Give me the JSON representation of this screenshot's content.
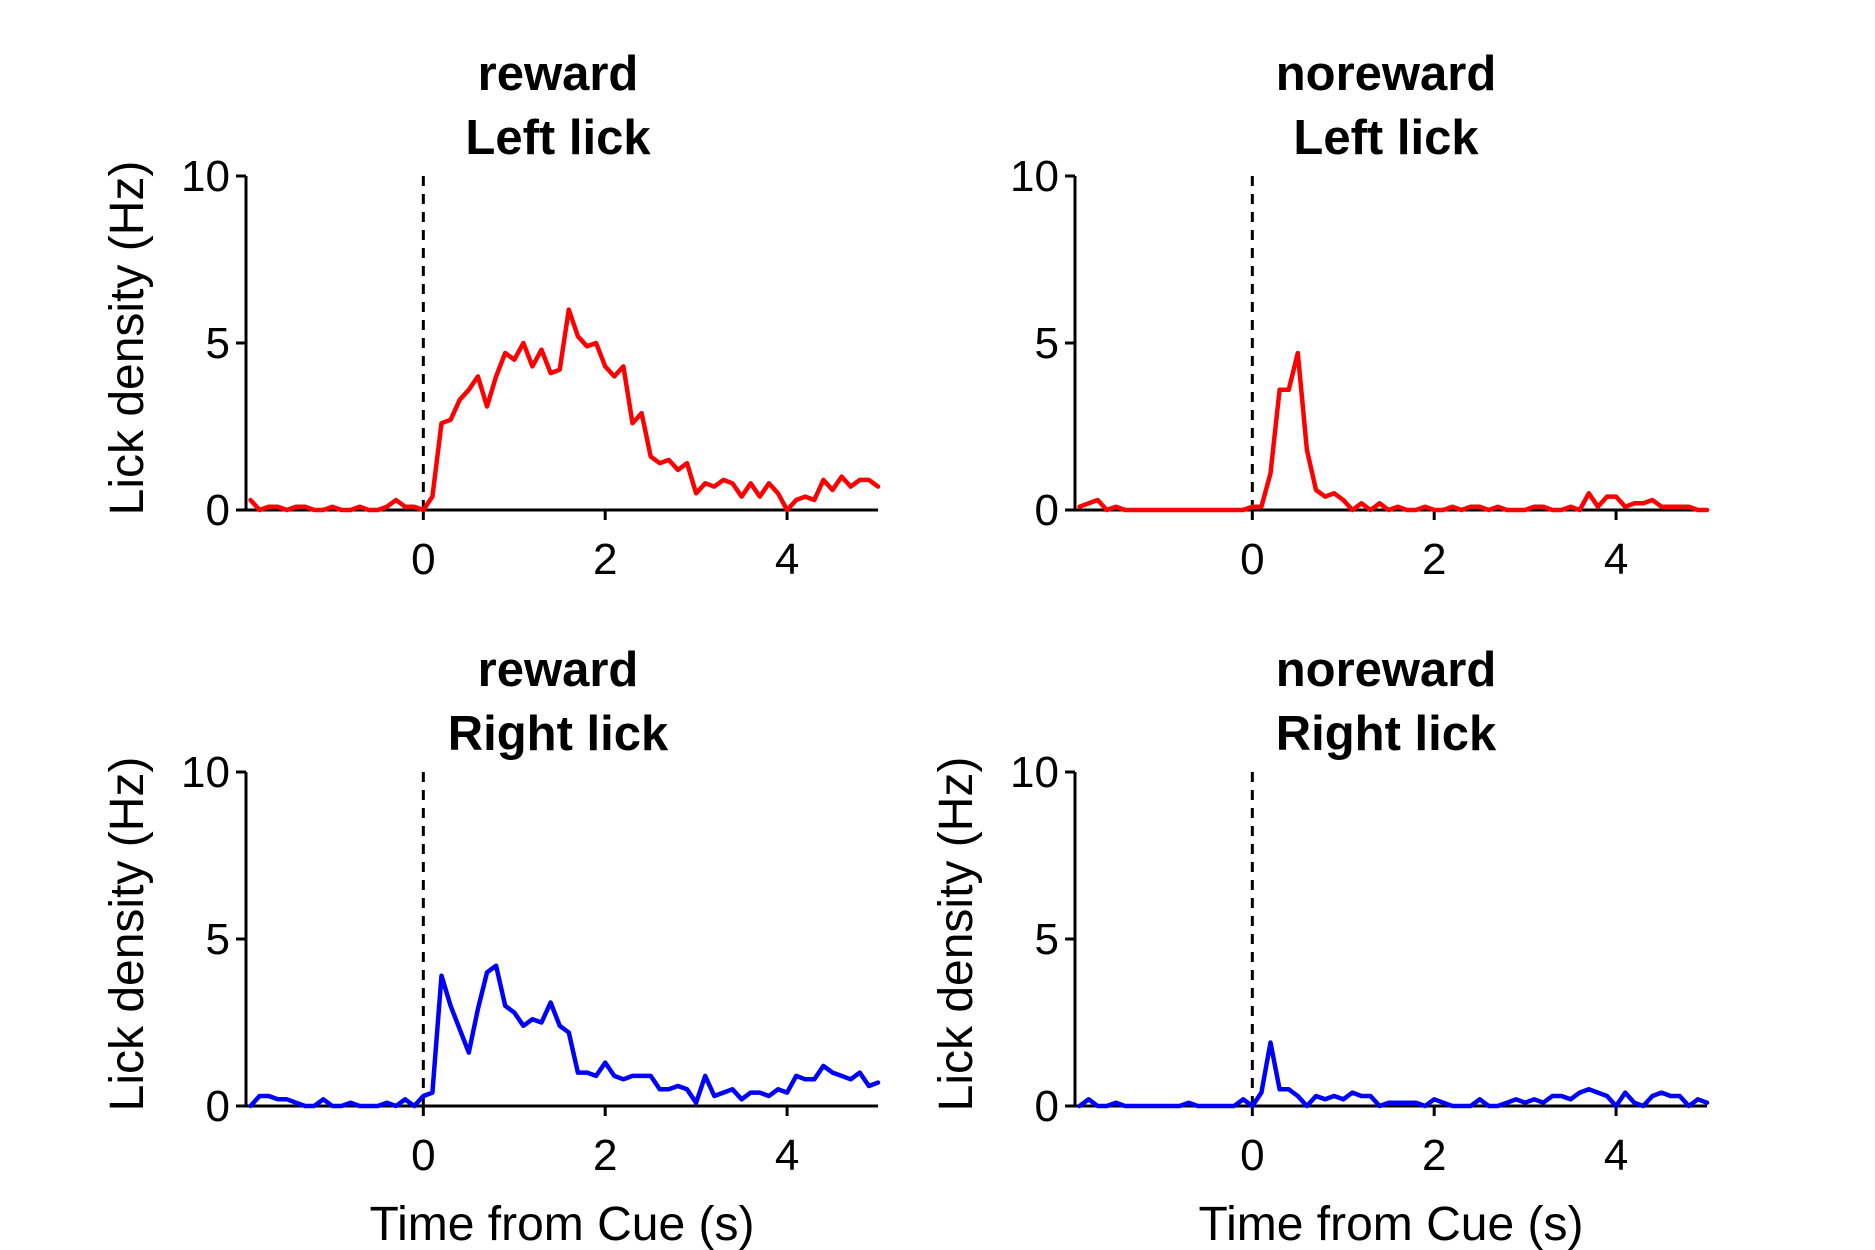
{
  "chart_data": [
    {
      "type": "line",
      "title": "reward",
      "subtitle": "Left lick",
      "xlabel": "",
      "ylabel": "Lick density (Hz)",
      "xlim": [
        -1.95,
        5.0
      ],
      "ylim": [
        0,
        10
      ],
      "xticks": [
        0,
        2,
        4
      ],
      "yticks": [
        0,
        5,
        10
      ],
      "xtick_labels": [
        "0",
        "2",
        "4"
      ],
      "ytick_labels": [
        "0",
        "5",
        "10"
      ],
      "cue_line_x": 0,
      "grid": false,
      "series": [
        {
          "color": "#ff0000",
          "x": [
            -1.9,
            -1.8,
            -1.7,
            -1.6,
            -1.5,
            -1.4,
            -1.3,
            -1.2,
            -1.1,
            -1.0,
            -0.9,
            -0.8,
            -0.7,
            -0.6,
            -0.5,
            -0.4,
            -0.3,
            -0.2,
            -0.1,
            0.0,
            0.1,
            0.2,
            0.3,
            0.4,
            0.5,
            0.6,
            0.7,
            0.8,
            0.9,
            1.0,
            1.1,
            1.2,
            1.3,
            1.4,
            1.5,
            1.6,
            1.7,
            1.8,
            1.9,
            2.0,
            2.1,
            2.2,
            2.3,
            2.4,
            2.5,
            2.6,
            2.7,
            2.8,
            2.9,
            3.0,
            3.1,
            3.2,
            3.3,
            3.4,
            3.5,
            3.6,
            3.7,
            3.8,
            3.9,
            4.0,
            4.1,
            4.2,
            4.3,
            4.4,
            4.5,
            4.6,
            4.7,
            4.8,
            4.9,
            5.0
          ],
          "y": [
            0.3,
            0.0,
            0.1,
            0.1,
            0.0,
            0.1,
            0.1,
            0.0,
            0.0,
            0.1,
            0.0,
            0.0,
            0.1,
            0.0,
            0.0,
            0.1,
            0.3,
            0.1,
            0.1,
            0.0,
            0.4,
            2.6,
            2.7,
            3.3,
            3.6,
            4.0,
            3.1,
            4.0,
            4.7,
            4.5,
            5.0,
            4.3,
            4.8,
            4.1,
            4.2,
            6.0,
            5.2,
            4.9,
            5.0,
            4.3,
            4.0,
            4.3,
            2.6,
            2.9,
            1.6,
            1.4,
            1.5,
            1.2,
            1.4,
            0.5,
            0.8,
            0.7,
            0.9,
            0.8,
            0.4,
            0.8,
            0.4,
            0.8,
            0.5,
            0.0,
            0.3,
            0.4,
            0.3,
            0.9,
            0.6,
            1.0,
            0.7,
            0.9,
            0.9,
            0.7
          ]
        }
      ]
    },
    {
      "type": "line",
      "title": "noreward",
      "subtitle": "Left lick",
      "xlabel": "",
      "ylabel": "",
      "xlim": [
        -1.95,
        5.0
      ],
      "ylim": [
        0,
        10
      ],
      "xticks": [
        0,
        2,
        4
      ],
      "yticks": [
        0,
        5,
        10
      ],
      "xtick_labels": [
        "0",
        "2",
        "4"
      ],
      "ytick_labels": [
        "0",
        "5",
        "10"
      ],
      "cue_line_x": 0,
      "grid": false,
      "series": [
        {
          "color": "#ff0000",
          "x": [
            -1.9,
            -1.8,
            -1.7,
            -1.6,
            -1.5,
            -1.4,
            -1.3,
            -1.2,
            -1.1,
            -1.0,
            -0.9,
            -0.8,
            -0.7,
            -0.6,
            -0.5,
            -0.4,
            -0.3,
            -0.2,
            -0.1,
            0.0,
            0.1,
            0.2,
            0.3,
            0.4,
            0.5,
            0.6,
            0.7,
            0.8,
            0.9,
            1.0,
            1.1,
            1.2,
            1.3,
            1.4,
            1.5,
            1.6,
            1.7,
            1.8,
            1.9,
            2.0,
            2.1,
            2.2,
            2.3,
            2.4,
            2.5,
            2.6,
            2.7,
            2.8,
            2.9,
            3.0,
            3.1,
            3.2,
            3.3,
            3.4,
            3.5,
            3.6,
            3.7,
            3.8,
            3.9,
            4.0,
            4.1,
            4.2,
            4.3,
            4.4,
            4.5,
            4.6,
            4.7,
            4.8,
            4.9,
            5.0
          ],
          "y": [
            0.1,
            0.2,
            0.3,
            0.0,
            0.1,
            0.0,
            0.0,
            0.0,
            0.0,
            0.0,
            0.0,
            0.0,
            0.0,
            0.0,
            0.0,
            0.0,
            0.0,
            0.0,
            0.0,
            0.1,
            0.1,
            1.1,
            3.6,
            3.6,
            4.7,
            1.8,
            0.6,
            0.4,
            0.5,
            0.3,
            0.0,
            0.2,
            0.0,
            0.2,
            0.0,
            0.1,
            0.0,
            0.0,
            0.1,
            0.0,
            0.0,
            0.1,
            0.0,
            0.1,
            0.1,
            0.0,
            0.1,
            0.0,
            0.0,
            0.0,
            0.1,
            0.1,
            0.0,
            0.0,
            0.1,
            0.0,
            0.5,
            0.1,
            0.4,
            0.4,
            0.1,
            0.2,
            0.2,
            0.3,
            0.1,
            0.1,
            0.1,
            0.1,
            0.0,
            0.0
          ]
        }
      ]
    },
    {
      "type": "line",
      "title": "reward",
      "subtitle": "Right lick",
      "xlabel": "Time from Cue (s)",
      "ylabel": "Lick density (Hz)",
      "xlim": [
        -1.95,
        5.0
      ],
      "ylim": [
        0,
        10
      ],
      "xticks": [
        0,
        2,
        4
      ],
      "yticks": [
        0,
        5,
        10
      ],
      "xtick_labels": [
        "0",
        "2",
        "4"
      ],
      "ytick_labels": [
        "0",
        "5",
        "10"
      ],
      "cue_line_x": 0,
      "grid": false,
      "series": [
        {
          "color": "#0000ff",
          "x": [
            -1.9,
            -1.8,
            -1.7,
            -1.6,
            -1.5,
            -1.4,
            -1.3,
            -1.2,
            -1.1,
            -1.0,
            -0.9,
            -0.8,
            -0.7,
            -0.6,
            -0.5,
            -0.4,
            -0.3,
            -0.2,
            -0.1,
            0.0,
            0.1,
            0.2,
            0.3,
            0.4,
            0.5,
            0.6,
            0.7,
            0.8,
            0.9,
            1.0,
            1.1,
            1.2,
            1.3,
            1.4,
            1.5,
            1.6,
            1.7,
            1.8,
            1.9,
            2.0,
            2.1,
            2.2,
            2.3,
            2.4,
            2.5,
            2.6,
            2.7,
            2.8,
            2.9,
            3.0,
            3.1,
            3.2,
            3.3,
            3.4,
            3.5,
            3.6,
            3.7,
            3.8,
            3.9,
            4.0,
            4.1,
            4.2,
            4.3,
            4.4,
            4.5,
            4.6,
            4.7,
            4.8,
            4.9,
            5.0
          ],
          "y": [
            0.0,
            0.3,
            0.3,
            0.2,
            0.2,
            0.1,
            0.0,
            0.0,
            0.2,
            0.0,
            0.0,
            0.1,
            0.0,
            0.0,
            0.0,
            0.1,
            0.0,
            0.2,
            0.0,
            0.3,
            0.4,
            3.9,
            3.0,
            2.3,
            1.6,
            2.9,
            4.0,
            4.2,
            3.0,
            2.8,
            2.4,
            2.6,
            2.5,
            3.1,
            2.4,
            2.2,
            1.0,
            1.0,
            0.9,
            1.3,
            0.9,
            0.8,
            0.9,
            0.9,
            0.9,
            0.5,
            0.5,
            0.6,
            0.5,
            0.1,
            0.9,
            0.3,
            0.4,
            0.5,
            0.2,
            0.4,
            0.4,
            0.3,
            0.5,
            0.4,
            0.9,
            0.8,
            0.8,
            1.2,
            1.0,
            0.9,
            0.8,
            1.0,
            0.6,
            0.7
          ]
        }
      ]
    },
    {
      "type": "line",
      "title": "noreward",
      "subtitle": "Right lick",
      "xlabel": "Time from Cue (s)",
      "ylabel": "Lick density (Hz)",
      "xlim": [
        -1.95,
        5.0
      ],
      "ylim": [
        0,
        10
      ],
      "xticks": [
        0,
        2,
        4
      ],
      "yticks": [
        0,
        5,
        10
      ],
      "xtick_labels": [
        "0",
        "2",
        "4"
      ],
      "ytick_labels": [
        "0",
        "5",
        "10"
      ],
      "cue_line_x": 0,
      "grid": false,
      "series": [
        {
          "color": "#0000ff",
          "x": [
            -1.9,
            -1.8,
            -1.7,
            -1.6,
            -1.5,
            -1.4,
            -1.3,
            -1.2,
            -1.1,
            -1.0,
            -0.9,
            -0.8,
            -0.7,
            -0.6,
            -0.5,
            -0.4,
            -0.3,
            -0.2,
            -0.1,
            0.0,
            0.1,
            0.2,
            0.3,
            0.4,
            0.5,
            0.6,
            0.7,
            0.8,
            0.9,
            1.0,
            1.1,
            1.2,
            1.3,
            1.4,
            1.5,
            1.6,
            1.7,
            1.8,
            1.9,
            2.0,
            2.1,
            2.2,
            2.3,
            2.4,
            2.5,
            2.6,
            2.7,
            2.8,
            2.9,
            3.0,
            3.1,
            3.2,
            3.3,
            3.4,
            3.5,
            3.6,
            3.7,
            3.8,
            3.9,
            4.0,
            4.1,
            4.2,
            4.3,
            4.4,
            4.5,
            4.6,
            4.7,
            4.8,
            4.9,
            5.0
          ],
          "y": [
            0.0,
            0.2,
            0.0,
            0.0,
            0.1,
            0.0,
            0.0,
            0.0,
            0.0,
            0.0,
            0.0,
            0.0,
            0.1,
            0.0,
            0.0,
            0.0,
            0.0,
            0.0,
            0.2,
            0.0,
            0.4,
            1.9,
            0.5,
            0.5,
            0.3,
            0.0,
            0.3,
            0.2,
            0.3,
            0.2,
            0.4,
            0.3,
            0.3,
            0.0,
            0.1,
            0.1,
            0.1,
            0.1,
            0.0,
            0.2,
            0.1,
            0.0,
            0.0,
            0.0,
            0.2,
            0.0,
            0.0,
            0.1,
            0.2,
            0.1,
            0.2,
            0.1,
            0.3,
            0.3,
            0.2,
            0.4,
            0.5,
            0.4,
            0.3,
            0.0,
            0.4,
            0.1,
            0.0,
            0.3,
            0.4,
            0.3,
            0.3,
            0.0,
            0.2,
            0.1
          ]
        }
      ]
    }
  ]
}
